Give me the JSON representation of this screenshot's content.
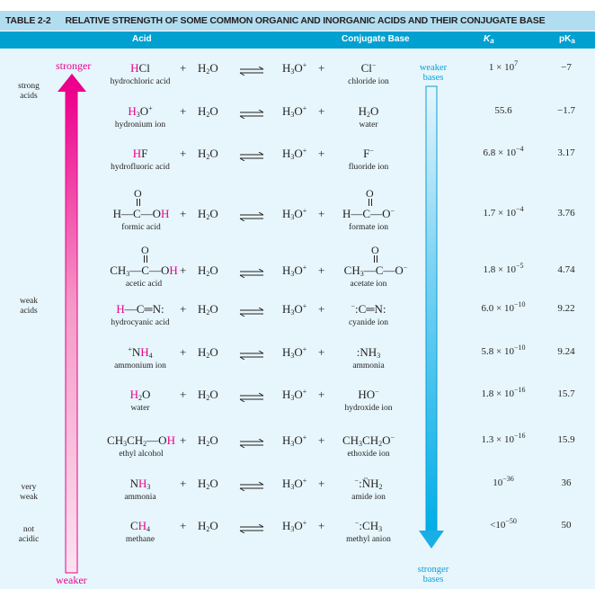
{
  "table": {
    "number": "TABLE 2-2",
    "title": "RELATIVE STRENGTH OF SOME COMMON ORGANIC AND INORGANIC ACIDS AND THEIR CONJUGATE BASE",
    "columns": {
      "acid": "Acid",
      "conjugate_base": "Conjugate Base",
      "ka": "K",
      "ka_sub": "a",
      "pka": "pK",
      "pka_sub": "a"
    }
  },
  "side_labels": {
    "strong_acids": [
      "strong",
      "acids"
    ],
    "weak_acids": [
      "weak",
      "acids"
    ],
    "very_weak": [
      "very",
      "weak"
    ],
    "not_acidic": [
      "not",
      "acidic"
    ]
  },
  "arrows": {
    "acid_top": "stronger",
    "acid_bottom": "weaker",
    "base_top": [
      "weaker",
      "bases"
    ],
    "base_bottom": [
      "stronger",
      "bases"
    ],
    "acid_color": "#ec008c",
    "base_color": "#0a9fd8"
  },
  "equation": {
    "plus": "+",
    "water": "H2O",
    "hydronium": "H3O+",
    "equilibrium": "⇌"
  },
  "rows": [
    {
      "acid": "HCl",
      "acid_name": "hydrochloric acid",
      "base": "Cl−",
      "base_name": "chloride ion",
      "ka": "1 × 10^7",
      "pka": "−7"
    },
    {
      "acid": "H3O+",
      "acid_name": "hydronium ion",
      "base": "H2O",
      "base_name": "water",
      "ka": "55.6",
      "pka": "−1.7"
    },
    {
      "acid": "HF",
      "acid_name": "hydrofluoric acid",
      "base": "F−",
      "base_name": "fluoride ion",
      "ka": "6.8 × 10^−4",
      "pka": "3.17"
    },
    {
      "acid": "H—C(=O)—OH",
      "acid_name": "formic acid",
      "base": "H—C(=O)—O−",
      "base_name": "formate ion",
      "ka": "1.7 × 10^−4",
      "pka": "3.76"
    },
    {
      "acid": "CH3—C(=O)—OH",
      "acid_name": "acetic acid",
      "base": "CH3—C(=O)—O−",
      "base_name": "acetate ion",
      "ka": "1.8 × 10^−5",
      "pka": "4.74"
    },
    {
      "acid": "H—C≡N:",
      "acid_name": "hydrocyanic acid",
      "base": "−:C≡N:",
      "base_name": "cyanide ion",
      "ka": "6.0 × 10^−10",
      "pka": "9.22"
    },
    {
      "acid": "+NH4",
      "acid_name": "ammonium ion",
      "base": ":NH3",
      "base_name": "ammonia",
      "ka": "5.8 × 10^−10",
      "pka": "9.24"
    },
    {
      "acid": "H2O",
      "acid_name": "water",
      "base": "HO−",
      "base_name": "hydroxide ion",
      "ka": "1.8 × 10^−16",
      "pka": "15.7"
    },
    {
      "acid": "CH3CH2—OH",
      "acid_name": "ethyl alcohol",
      "base": "CH3CH2O−",
      "base_name": "ethoxide ion",
      "ka": "1.3 × 10^−16",
      "pka": "15.9"
    },
    {
      "acid": "NH3",
      "acid_name": "ammonia",
      "base": "−:NH2",
      "base_name": "amide ion",
      "ka": "10^−36",
      "pka": "36"
    },
    {
      "acid": "CH4",
      "acid_name": "methane",
      "base": "−:CH3",
      "base_name": "methyl anion",
      "ka": "<10^−50",
      "pka": "50"
    }
  ],
  "ka_parts": [
    {
      "mant": "1 × 10",
      "exp": "7"
    },
    {
      "mant": "55.6",
      "exp": ""
    },
    {
      "mant": "6.8 × 10",
      "exp": "−4"
    },
    {
      "mant": "1.7 × 10",
      "exp": "−4"
    },
    {
      "mant": "1.8 × 10",
      "exp": "−5"
    },
    {
      "mant": "6.0 × 10",
      "exp": "−10"
    },
    {
      "mant": "5.8 × 10",
      "exp": "−10"
    },
    {
      "mant": "1.8 × 10",
      "exp": "−16"
    },
    {
      "mant": "1.3 × 10",
      "exp": "−16"
    },
    {
      "mant": "10",
      "exp": "−36"
    },
    {
      "mant": "<10",
      "exp": "−50"
    }
  ]
}
